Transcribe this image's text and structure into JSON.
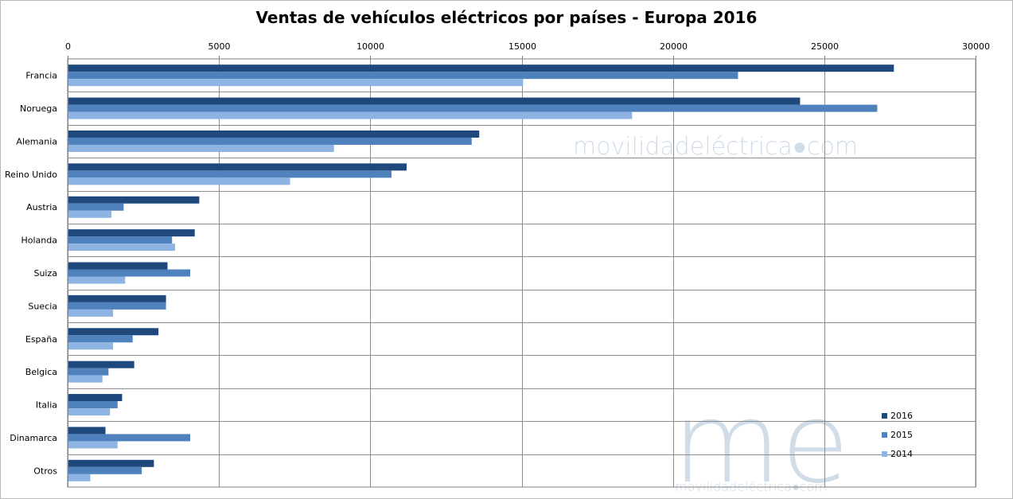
{
  "chart_data": {
    "type": "bar",
    "orientation": "horizontal",
    "title": "Ventas de vehículos eléctricos por países - Europa 2016",
    "xlabel": "",
    "ylabel": "",
    "xlim": [
      0,
      30000
    ],
    "ticks": [
      "0",
      "5000",
      "10000",
      "15000",
      "20000",
      "25000",
      "30000"
    ],
    "tick_values": [
      0,
      5000,
      10000,
      15000,
      20000,
      25000,
      30000
    ],
    "grid": true,
    "legend_position": "bottom-right",
    "categories": [
      "Francia",
      "Noruega",
      "Alemania",
      "Reino Unido",
      "Austria",
      "Holanda",
      "Suiza",
      "Suecia",
      "España",
      "Belgica",
      "Italia",
      "Dinamarca",
      "Otros"
    ],
    "series": [
      {
        "name": "2016",
        "color": "#1f497d",
        "values": [
          27300,
          24200,
          13600,
          11200,
          4350,
          4200,
          3300,
          3250,
          3000,
          2200,
          1800,
          1250,
          2850
        ]
      },
      {
        "name": "2015",
        "color": "#4f81bd",
        "values": [
          22150,
          26750,
          13350,
          10700,
          1850,
          3450,
          4050,
          3250,
          2150,
          1350,
          1650,
          4050,
          2450
        ]
      },
      {
        "name": "2014",
        "color": "#8db4e2",
        "values": [
          15050,
          18650,
          8800,
          7350,
          1450,
          3550,
          1900,
          1500,
          1500,
          1150,
          1400,
          1650,
          750
        ]
      }
    ]
  },
  "watermark": {
    "text": "movilidadeléctrica●com",
    "logo": "me"
  }
}
